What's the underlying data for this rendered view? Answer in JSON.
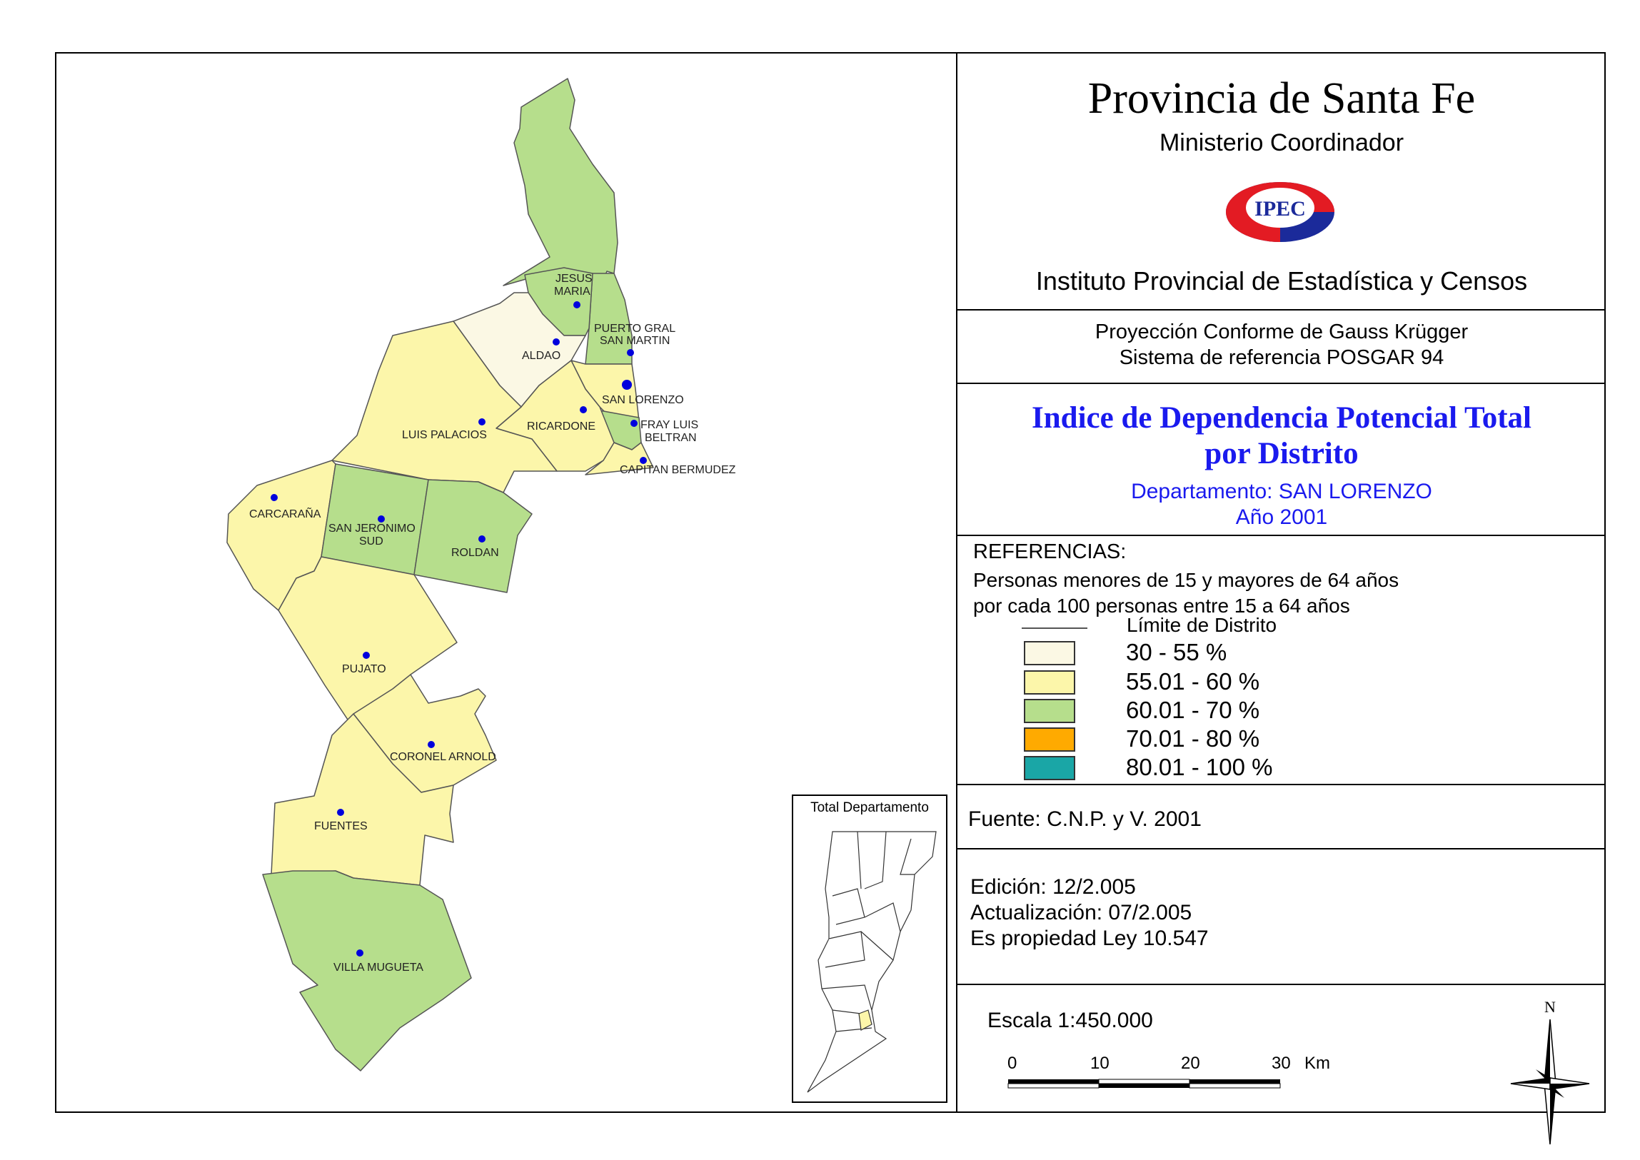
{
  "header": {
    "title": "Provincia de Santa Fe",
    "ministry": "Ministerio Coordinador",
    "logo_text": "IPEC",
    "institute": "Instituto Provincial de Estadística y Censos"
  },
  "projection": {
    "line1": "Proyección Conforme de Gauss Krügger",
    "line2": "Sistema de referencia POSGAR 94"
  },
  "map_title": {
    "line1": "Indice de Dependencia Potencial Total",
    "line2": "por Distrito",
    "department": "Departamento:  SAN LORENZO",
    "year": "Año 2001"
  },
  "legend": {
    "heading": "REFERENCIAS:",
    "desc1": "Personas menores de 15 y mayores de 64 años",
    "desc2": "por cada 100 personas entre 15 a 64 años",
    "boundary": "Límite de Distrito",
    "classes": [
      {
        "label": "30 - 55 %",
        "color": "#fbf8e4"
      },
      {
        "label": "55.01 - 60 %",
        "color": "#fcf6aa"
      },
      {
        "label": "60.01 - 70 %",
        "color": "#b6de8c"
      },
      {
        "label": "70.01 - 80 %",
        "color": "#ffaa00"
      },
      {
        "label": "80.01 - 100 %",
        "color": "#1aa6a6"
      }
    ]
  },
  "source": "Fuente:  C.N.P. y V. 2001",
  "edition": {
    "line1": "Edición:  12/2.005",
    "line2": "Actualización:  07/2.005",
    "line3": "Es propiedad Ley 10.547"
  },
  "scale": {
    "title": "Escala 1:450.000",
    "ticks": [
      "0",
      "10",
      "20",
      "30"
    ],
    "unit": "Km"
  },
  "north": "N",
  "inset_title": "Total Departamento",
  "districts": [
    {
      "name": "JESUS MARIA",
      "class": "60.01 - 70 %"
    },
    {
      "name": "PUERTO GRAL SAN MARTIN",
      "class": "60.01 - 70 %"
    },
    {
      "name": "ALDAO",
      "class": "30 - 55 %"
    },
    {
      "name": "SAN LORENZO",
      "class": "55.01 - 60 %"
    },
    {
      "name": "LUIS PALACIOS",
      "class": "55.01 - 60 %"
    },
    {
      "name": "RICARDONE",
      "class": "55.01 - 60 %"
    },
    {
      "name": "FRAY LUIS BELTRAN",
      "class": "60.01 - 70 %"
    },
    {
      "name": "CAPITAN BERMUDEZ",
      "class": "55.01 - 60 %"
    },
    {
      "name": "CARCARAÑA",
      "class": "55.01 - 60 %"
    },
    {
      "name": "SAN JERONIMO SUD",
      "class": "60.01 - 70 %"
    },
    {
      "name": "ROLDAN",
      "class": "60.01 - 70 %"
    },
    {
      "name": "PUJATO",
      "class": "55.01 - 60 %"
    },
    {
      "name": "CORONEL ARNOLD",
      "class": "55.01 - 60 %"
    },
    {
      "name": "FUENTES",
      "class": "55.01 - 60 %"
    },
    {
      "name": "VILLA MUGUETA",
      "class": "60.01 - 70 %"
    }
  ],
  "labels": {
    "jesus1": "JESUS",
    "jesus2": "MARIA",
    "puerto1": "PUERTO GRAL",
    "puerto2": "SAN MARTIN",
    "aldao": "ALDAO",
    "sanlorenzo": "SAN LORENZO",
    "luispalacios": "LUIS PALACIOS",
    "ricardone": "RICARDONE",
    "fray1": "FRAY LUIS",
    "fray2": "BELTRAN",
    "capitan": "CAPITAN BERMUDEZ",
    "carcarana": "CARCARAÑA",
    "sanjer1": "SAN JERONIMO",
    "sanjer2": "SUD",
    "roldan": "ROLDAN",
    "pujato": "PUJATO",
    "coronel": "CORONEL ARNOLD",
    "fuentes": "FUENTES",
    "villa": "VILLA MUGUETA"
  }
}
